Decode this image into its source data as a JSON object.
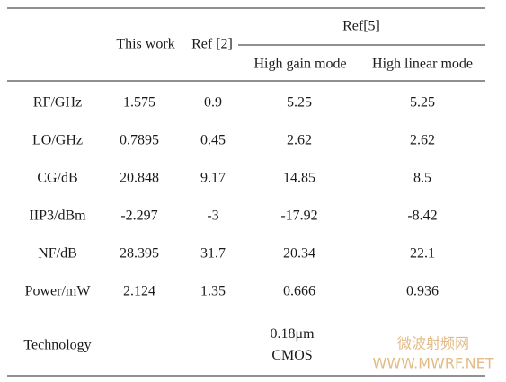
{
  "table": {
    "header": {
      "this_work": "This work",
      "ref2": "Ref [2]",
      "ref5": "Ref[5]",
      "high_gain": "High gain mode",
      "high_linear": "High linear mode"
    },
    "rows": [
      [
        "RF/GHz",
        "1.575",
        "0.9",
        "5.25",
        "5.25"
      ],
      [
        "LO/GHz",
        "0.7895",
        "0.45",
        "2.62",
        "2.62"
      ],
      [
        "CG/dB",
        "20.848",
        "9.17",
        "14.85",
        "8.5"
      ],
      [
        "IIP3/dBm",
        "-2.297",
        "-3",
        "-17.92",
        "-8.42"
      ],
      [
        "NF/dB",
        "28.395",
        "31.7",
        "20.34",
        "22.1"
      ],
      [
        "Power/mW",
        "2.124",
        "1.35",
        "0.666",
        "0.936"
      ]
    ],
    "technology": {
      "label": "Technology",
      "value": "0.18μm CMOS"
    }
  },
  "watermark": {
    "name": "微波射频网",
    "url": "WWW.MWRF.NET"
  }
}
